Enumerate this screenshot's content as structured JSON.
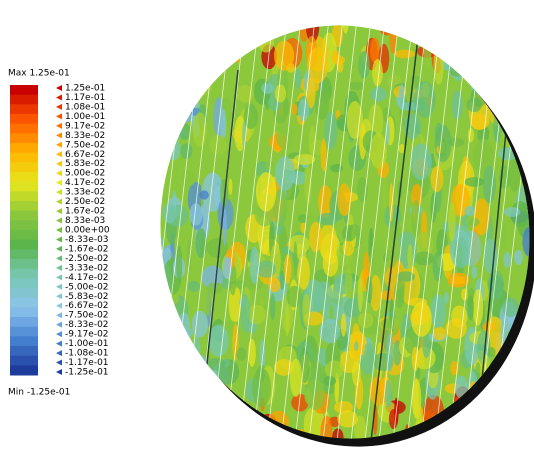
{
  "legend": {
    "max_label": "Max  1.25e-01",
    "min_label": "Min -1.25e-01",
    "ticks": [
      "1.25e-01",
      "1.17e-01",
      "1.08e-01",
      "1.00e-01",
      "9.17e-02",
      "8.33e-02",
      "7.50e-02",
      "6.67e-02",
      "5.83e-02",
      "5.00e-02",
      "4.17e-02",
      "3.33e-02",
      "2.50e-02",
      "1.67e-02",
      "8.33e-03",
      "0.00e+00",
      "-8.33e-03",
      "-1.67e-02",
      "-2.50e-02",
      "-3.33e-02",
      "-4.17e-02",
      "-5.00e-02",
      "-5.83e-02",
      "-6.67e-02",
      "-7.50e-02",
      "-8.33e-02",
      "-9.17e-02",
      "-1.00e-01",
      "-1.08e-01",
      "-1.17e-01",
      "-1.25e-01"
    ],
    "colormap": [
      "#c80000",
      "#ff5a00",
      "#ffb400",
      "#e6e61e",
      "#8cc83c",
      "#5ab44b",
      "#78c8b4",
      "#8cc3eb",
      "#4682d2",
      "#1e3c9b"
    ]
  }
}
